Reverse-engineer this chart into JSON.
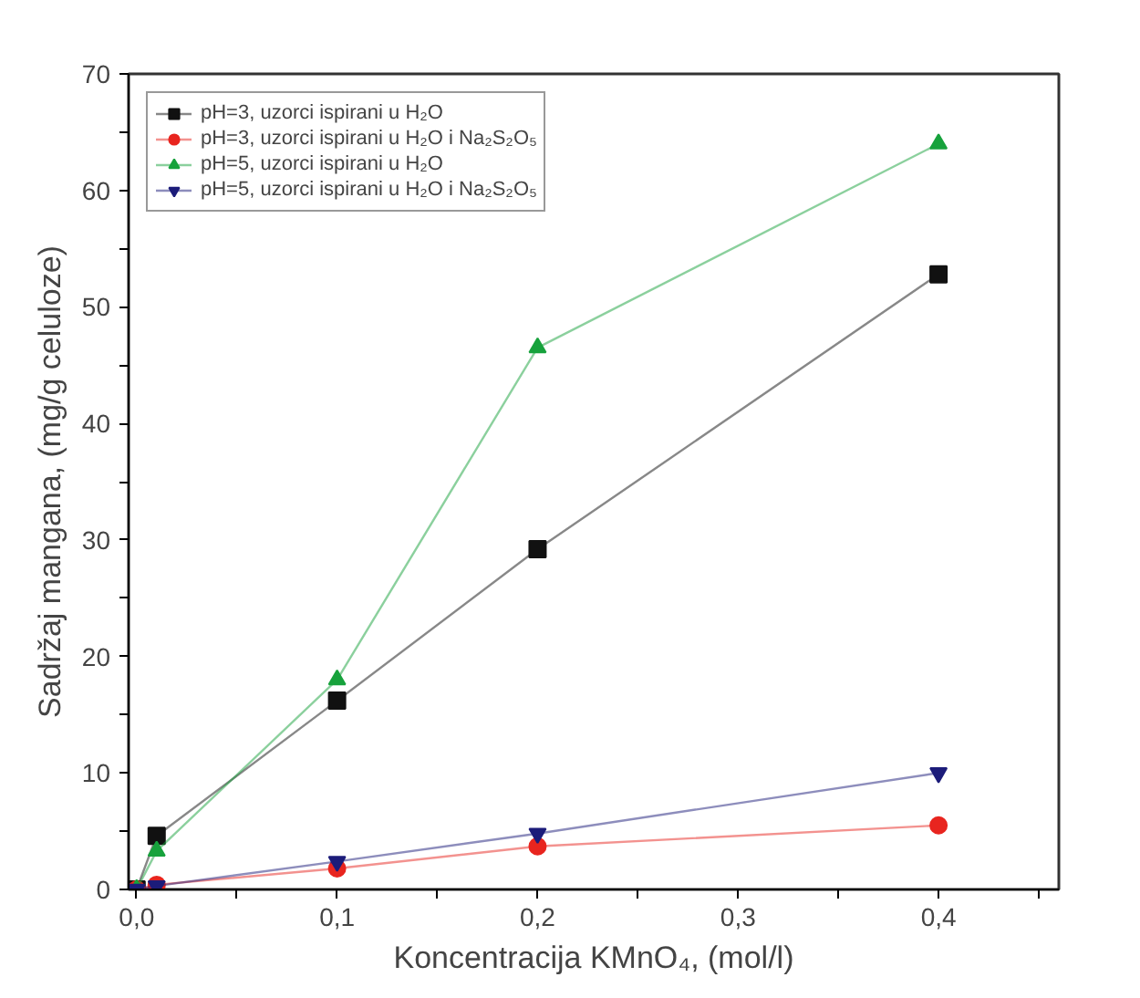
{
  "chart_data": {
    "type": "line",
    "xlabel": "Koncentracija KMnO₄, (mol/l)",
    "ylabel": "Sadržaj mangana, (mg/g celuloze)",
    "x": [
      0,
      0.01,
      0.1,
      0.2,
      0.4
    ],
    "series": [
      {
        "name": "pH=3, uzorci ispirani u H₂O",
        "color": "#111111",
        "marker": "square",
        "values": [
          0,
          4.6,
          16.2,
          29.2,
          52.8
        ]
      },
      {
        "name": "pH=3, uzorci ispirani u H₂O i Na₂S₂O₅",
        "color": "#e8251f",
        "marker": "circle",
        "values": [
          0,
          0.4,
          1.8,
          3.7,
          5.5
        ]
      },
      {
        "name": "pH=5, uzorci ispirani u H₂O",
        "color": "#17a23c",
        "marker": "triangle",
        "values": [
          0,
          3.3,
          18,
          46.5,
          64
        ]
      },
      {
        "name": "pH=5, uzorci ispirani u H₂O i Na₂S₂O₅",
        "color": "#1c1c7a",
        "marker": "triangle",
        "values": [
          0,
          0.3,
          2.4,
          4.8,
          10
        ]
      }
    ],
    "xlim": [
      -0.004,
      0.46
    ],
    "ylim": [
      0,
      70
    ],
    "xticks": [
      {
        "value": 0,
        "label": "0,0"
      },
      {
        "value": 0.05,
        "label": null
      },
      {
        "value": 0.1,
        "label": "0,1"
      },
      {
        "value": 0.15,
        "label": null
      },
      {
        "value": 0.2,
        "label": "0,2"
      },
      {
        "value": 0.25,
        "label": null
      },
      {
        "value": 0.3,
        "label": "0,3"
      },
      {
        "value": 0.35,
        "label": null
      },
      {
        "value": 0.4,
        "label": "0,4"
      },
      {
        "value": 0.45,
        "label": null
      }
    ],
    "yticks": [
      0,
      {
        "value": 5,
        "label": null
      },
      10,
      {
        "value": 15,
        "label": null
      },
      20,
      {
        "value": 25,
        "label": null
      },
      30,
      {
        "value": 35,
        "label": null
      },
      40,
      {
        "value": 45,
        "label": null
      },
      50,
      {
        "value": 55,
        "label": null
      },
      60,
      {
        "value": 65,
        "label": null
      },
      70
    ],
    "grid": false,
    "legend": "top left"
  }
}
